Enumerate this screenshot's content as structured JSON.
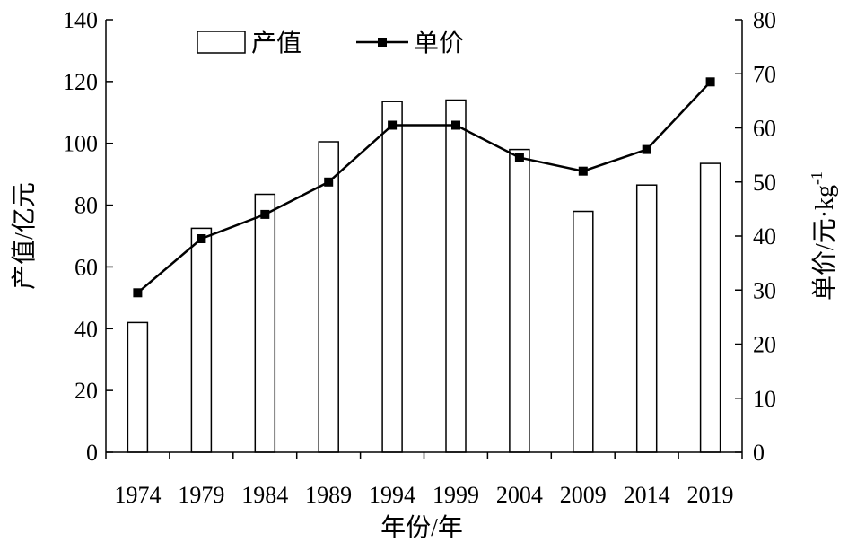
{
  "chart_data": {
    "type": "bar",
    "categories": [
      "1974",
      "1979",
      "1984",
      "1989",
      "1994",
      "1999",
      "2004",
      "2009",
      "2014",
      "2019"
    ],
    "series": [
      {
        "name": "产值",
        "type": "bar",
        "axis": "left",
        "values": [
          42,
          72.5,
          83.5,
          100.5,
          113.5,
          114,
          98,
          78,
          86.5,
          93.5
        ]
      },
      {
        "name": "单价",
        "type": "line",
        "axis": "right",
        "values": [
          29.5,
          39.5,
          44,
          50,
          60.5,
          60.5,
          54.5,
          52,
          56,
          68.5
        ]
      }
    ],
    "xlabel": "年份/年",
    "ylabel": "产值/亿元",
    "ylabel_right": "单价/元·kg",
    "ylabel_right_superscript": "-1",
    "ylim": [
      0,
      140
    ],
    "ylim_right": [
      0,
      80
    ],
    "yticks": [
      "0",
      "20",
      "40",
      "60",
      "80",
      "100",
      "120",
      "140"
    ],
    "yticks_right": [
      "0",
      "10",
      "20",
      "30",
      "40",
      "50",
      "60",
      "70",
      "80"
    ],
    "grid": false,
    "legend_position": "top-left",
    "colors": {
      "bar_fill": "#ffffff",
      "bar_stroke": "#000000",
      "line": "#000000",
      "marker": "#000000"
    }
  }
}
